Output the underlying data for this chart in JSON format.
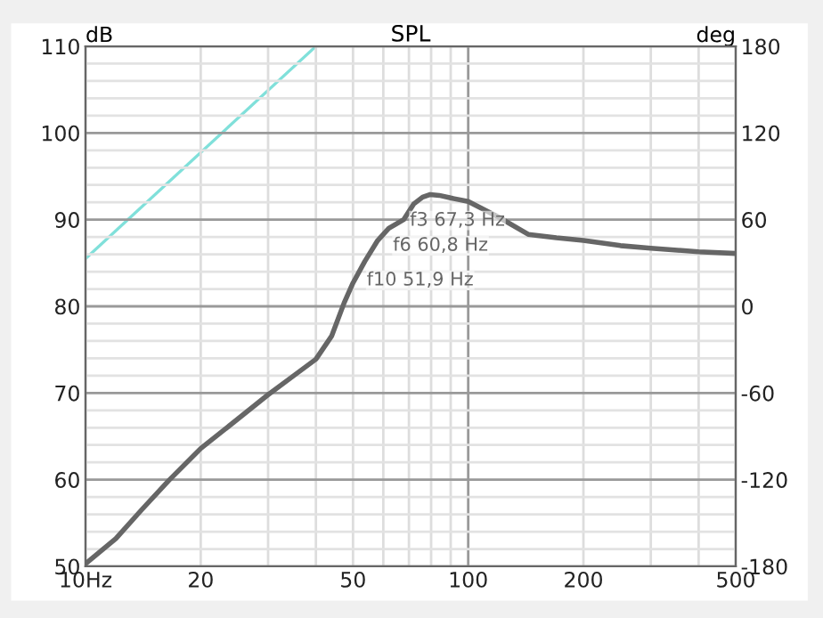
{
  "chart_data": {
    "type": "line",
    "title": "SPL",
    "ylabel": "dB",
    "y2label": "deg",
    "log": "x",
    "xlim": [
      10,
      500
    ],
    "ylim": [
      50,
      110
    ],
    "y2lim": [
      -180,
      180
    ],
    "xticks": [
      {
        "value": 10,
        "label": "10Hz"
      },
      20,
      {
        "value": 30,
        "label": null
      },
      {
        "value": 40,
        "label": null
      },
      50,
      {
        "value": 60,
        "label": null
      },
      {
        "value": 70,
        "label": null
      },
      {
        "value": 80,
        "label": null
      },
      {
        "value": 90,
        "label": null
      },
      100,
      200,
      {
        "value": 300,
        "label": null
      },
      {
        "value": 400,
        "label": null
      },
      500
    ],
    "yticks": [
      50,
      {
        "value": 52,
        "label": null
      },
      {
        "value": 54,
        "label": null
      },
      {
        "value": 56,
        "label": null
      },
      {
        "value": 58,
        "label": null
      },
      60,
      {
        "value": 62,
        "label": null
      },
      {
        "value": 64,
        "label": null
      },
      {
        "value": 66,
        "label": null
      },
      {
        "value": 68,
        "label": null
      },
      70,
      {
        "value": 72,
        "label": null
      },
      {
        "value": 74,
        "label": null
      },
      {
        "value": 76,
        "label": null
      },
      {
        "value": 78,
        "label": null
      },
      80,
      {
        "value": 82,
        "label": null
      },
      {
        "value": 84,
        "label": null
      },
      {
        "value": 86,
        "label": null
      },
      {
        "value": 88,
        "label": null
      },
      90,
      {
        "value": 92,
        "label": null
      },
      {
        "value": 94,
        "label": null
      },
      {
        "value": 96,
        "label": null
      },
      {
        "value": 98,
        "label": null
      },
      100,
      {
        "value": 102,
        "label": null
      },
      {
        "value": 104,
        "label": null
      },
      {
        "value": 106,
        "label": null
      },
      {
        "value": 108,
        "label": null
      },
      110
    ],
    "y2ticks": [
      -180,
      -120,
      -60,
      0,
      60,
      120,
      180
    ],
    "grid": true,
    "marker": "none",
    "line_style": "solid",
    "series": [
      {
        "color": "#666666",
        "x": [
          10,
          12,
          14,
          16.5,
          20,
          25,
          30,
          35,
          40,
          44,
          47.4,
          50,
          53.7,
          58,
          62,
          67.8,
          72,
          76,
          79.6,
          84,
          90,
          100,
          120,
          143.5,
          170,
          200,
          250,
          300,
          400,
          500
        ],
        "values": [
          50.3,
          53.2,
          56.5,
          59.9,
          63.6,
          67.0,
          69.8,
          72.0,
          73.9,
          76.6,
          80.4,
          82.7,
          85.2,
          87.6,
          89.0,
          90.0,
          91.8,
          92.6,
          92.9,
          92.8,
          92.5,
          92.1,
          90.3,
          88.3,
          87.9,
          87.6,
          87.0,
          86.7,
          86.3,
          86.1
        ]
      },
      {
        "color": "#80e0da",
        "axis": "y2",
        "x": [
          10,
          40
        ],
        "values": [
          33,
          180
        ]
      }
    ],
    "annotations": [
      {
        "text": "f3 67,3 Hz",
        "x": 67.3,
        "y": 89.9
      },
      {
        "text": "f6 60,8 Hz",
        "x": 60.8,
        "y": 87
      },
      {
        "text": "f10 51,9 Hz",
        "x": 51.9,
        "y": 83
      }
    ]
  }
}
